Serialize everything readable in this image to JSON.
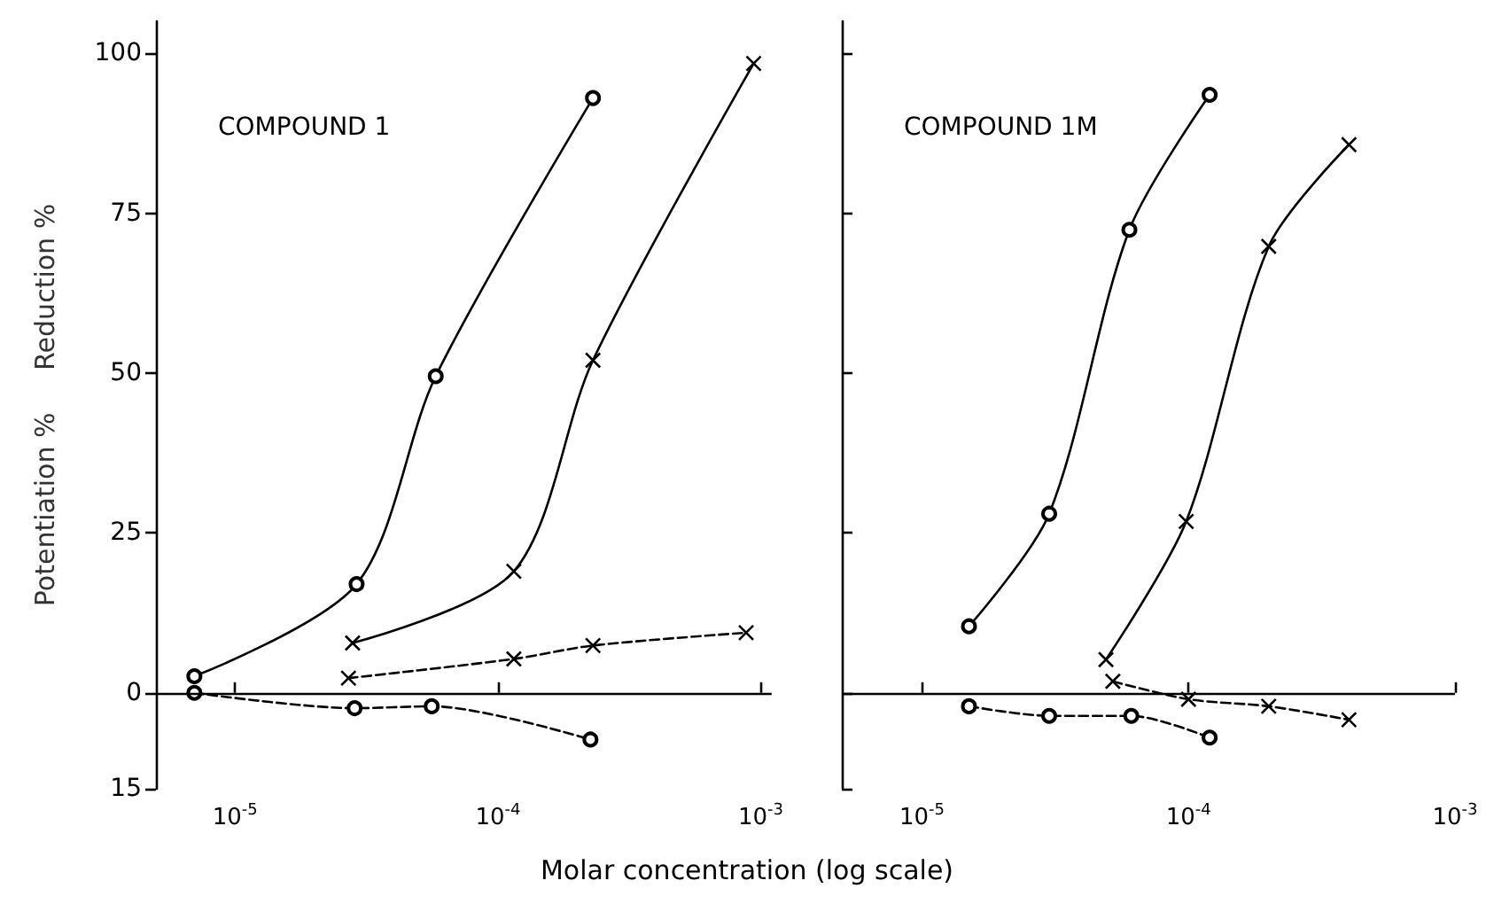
{
  "chart_data": [
    {
      "type": "line",
      "title": "COMPOUND 1",
      "xlabel": "Molar concentration (log scale)",
      "ylabel": "Potentiation %     Reduction %",
      "log": "x",
      "grid": false,
      "xlim": [
        5e-06,
        0.0011
      ],
      "xticks": [
        {
          "value": 1e-05,
          "label": "10$^{-5}$"
        },
        {
          "value": 0.0001,
          "label": "10$^{-4}$"
        },
        {
          "value": 0.001,
          "label": "10$^{-3}$"
        }
      ],
      "ylim": [
        -15,
        105
      ],
      "yticks": [
        {
          "value": -15,
          "label": "15"
        },
        0,
        25,
        50,
        75,
        100
      ],
      "ref_lines": [
        {
          "axis": "y",
          "value": 0
        }
      ],
      "series": [
        {
          "color": "#000000",
          "marker": "circle",
          "line_style": "solid",
          "x": [
            7e-06,
            2.9e-05,
            5.8e-05,
            0.00023
          ],
          "values": [
            2.6,
            17,
            49.5,
            93
          ]
        },
        {
          "color": "#000000",
          "marker": "cross",
          "line_style": "solid",
          "x": [
            2.8e-05,
            0.000115,
            0.00023,
            0.00094
          ],
          "values": [
            7.8,
            19,
            52,
            98.4
          ]
        },
        {
          "color": "#000000",
          "marker": "cross",
          "line_style": "dashed",
          "x": [
            2.7e-05,
            0.000115,
            0.00023,
            0.00088
          ],
          "values": [
            2.3,
            5.3,
            7.4,
            9.4
          ]
        },
        {
          "color": "#000000",
          "marker": "circle",
          "line_style": "dashed",
          "x": [
            7e-06,
            2.85e-05,
            5.6e-05,
            0.000225
          ],
          "values": [
            0,
            -2.4,
            -2.1,
            -7.3
          ]
        }
      ]
    },
    {
      "type": "line",
      "title": "COMPOUND 1M",
      "log": "x",
      "grid": false,
      "tick_labels": "x",
      "xlim": [
        5e-06,
        0.001
      ],
      "xticks": [
        {
          "value": 1e-05,
          "label": "10$^{-5}$"
        },
        {
          "value": 0.0001,
          "label": "10$^{-4}$"
        },
        {
          "value": 0.001,
          "label": "10$^{-3}$"
        }
      ],
      "ylim": [
        -15,
        105
      ],
      "yticks": [
        -15,
        0,
        25,
        50,
        75,
        100
      ],
      "ref_lines": [
        {
          "axis": "y",
          "value": 0
        }
      ],
      "series": [
        {
          "color": "#000000",
          "marker": "circle",
          "line_style": "solid",
          "x": [
            1.5e-05,
            3e-05,
            6e-05,
            0.00012
          ],
          "values": [
            10.4,
            28,
            72.4,
            93.5
          ]
        },
        {
          "color": "#000000",
          "marker": "cross",
          "line_style": "solid",
          "x": [
            4.9e-05,
            9.8e-05,
            0.0002,
            0.0004
          ],
          "values": [
            5.2,
            26.8,
            69.8,
            85.7
          ]
        },
        {
          "color": "#000000",
          "marker": "cross",
          "line_style": "dashed",
          "x": [
            5.2e-05,
            0.0001,
            0.0002,
            0.0004
          ],
          "values": [
            1.8,
            -1,
            -2.1,
            -4.2
          ]
        },
        {
          "color": "#000000",
          "marker": "circle",
          "line_style": "dashed",
          "x": [
            1.5e-05,
            3e-05,
            6.1e-05,
            0.00012
          ],
          "values": [
            -2.1,
            -3.6,
            -3.6,
            -7
          ]
        }
      ]
    }
  ]
}
